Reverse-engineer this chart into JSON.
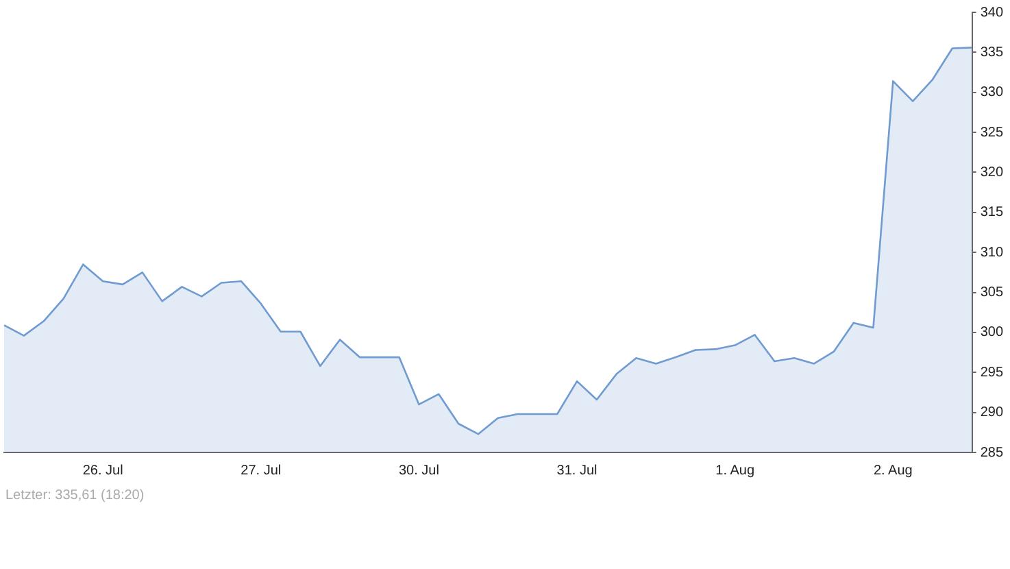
{
  "chart_data": {
    "type": "area",
    "categories": [
      null,
      null,
      null,
      null,
      null,
      "26. Jul",
      null,
      null,
      null,
      null,
      null,
      null,
      null,
      "27. Jul",
      null,
      null,
      null,
      null,
      null,
      null,
      null,
      "30. Jul",
      null,
      null,
      null,
      null,
      null,
      null,
      null,
      "31. Jul",
      null,
      null,
      null,
      null,
      null,
      null,
      null,
      "1. Aug",
      null,
      null,
      null,
      null,
      null,
      null,
      null,
      "2. Aug",
      null,
      null,
      null,
      null
    ],
    "series": [
      {
        "color": "#6f9bd1",
        "values": [
          300.9,
          299.6,
          301.4,
          304.2,
          308.5,
          306.4,
          306.0,
          307.5,
          303.9,
          305.7,
          304.5,
          306.2,
          306.4,
          303.6,
          300.1,
          300.1,
          295.8,
          299.1,
          296.9,
          296.9,
          296.9,
          291.0,
          292.3,
          288.6,
          287.3,
          289.3,
          289.8,
          289.8,
          289.8,
          293.9,
          291.6,
          294.8,
          296.8,
          296.1,
          296.9,
          297.8,
          297.9,
          298.4,
          299.7,
          296.4,
          296.8,
          296.1,
          297.6,
          301.2,
          300.6,
          331.4,
          328.9,
          331.6,
          335.5,
          335.6
        ]
      }
    ],
    "ylim": [
      285,
      340
    ],
    "yticks": [
      285,
      290,
      295,
      300,
      305,
      310,
      315,
      320,
      325,
      330,
      335,
      340
    ],
    "grid": false,
    "legend": false,
    "marker": "none",
    "line_style": "solid",
    "annotations": [
      "Letzter: 335,61 (18:20)"
    ]
  }
}
